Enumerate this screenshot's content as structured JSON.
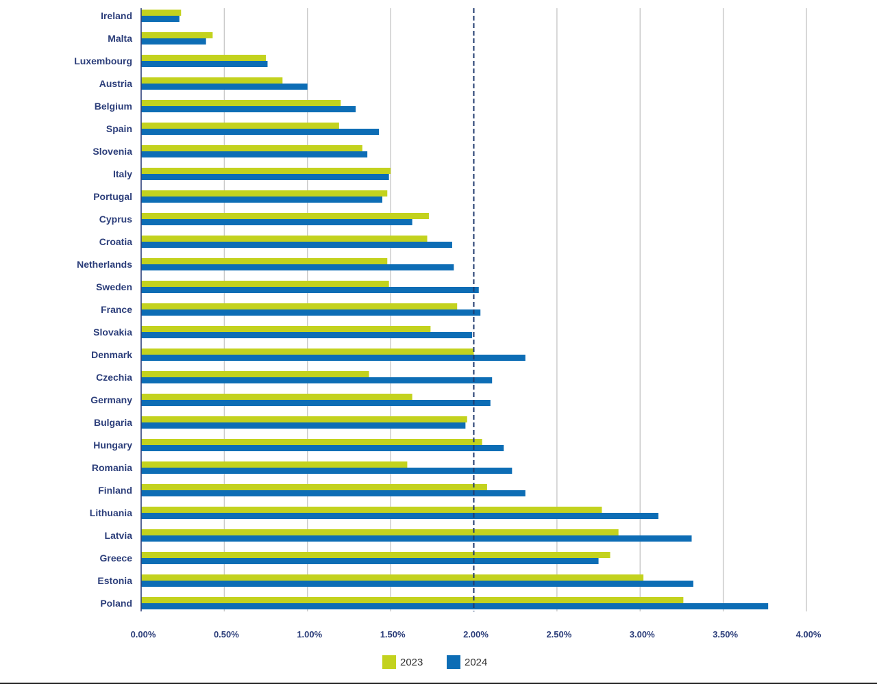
{
  "chart_data": {
    "type": "bar",
    "orientation": "horizontal",
    "title": "",
    "xlabel": "",
    "ylabel": "",
    "xlim": [
      0,
      4.0
    ],
    "grid": true,
    "legend_position": "bottom-center",
    "reference_line": {
      "value": 2.0,
      "style": "dashed"
    },
    "categories": [
      "Ireland",
      "Malta",
      "Luxembourg",
      "Austria",
      "Belgium",
      "Spain",
      "Slovenia",
      "Italy",
      "Portugal",
      "Cyprus",
      "Croatia",
      "Netherlands",
      "Sweden",
      "France",
      "Slovakia",
      "Denmark",
      "Czechia",
      "Germany",
      "Bulgaria",
      "Hungary",
      "Romania",
      "Finland",
      "Lithuania",
      "Latvia",
      "Greece",
      "Estonia",
      "Poland"
    ],
    "series": [
      {
        "name": "2023",
        "color": "#c3d21e",
        "values": [
          0.24,
          0.43,
          0.75,
          0.85,
          1.2,
          1.19,
          1.33,
          1.5,
          1.48,
          1.73,
          1.72,
          1.48,
          1.49,
          1.9,
          1.74,
          2.0,
          1.37,
          1.63,
          1.96,
          2.05,
          1.6,
          2.08,
          2.77,
          2.87,
          2.82,
          3.02,
          3.26
        ]
      },
      {
        "name": "2024",
        "color": "#0d6db5",
        "values": [
          0.23,
          0.39,
          0.76,
          1.0,
          1.29,
          1.43,
          1.36,
          1.49,
          1.45,
          1.63,
          1.87,
          1.88,
          2.03,
          2.04,
          1.99,
          2.31,
          2.11,
          2.1,
          1.95,
          2.18,
          2.23,
          2.31,
          3.11,
          3.31,
          2.75,
          3.32,
          3.77
        ]
      }
    ],
    "x_ticks": [
      0,
      0.5,
      1.0,
      1.5,
      2.0,
      2.5,
      3.0,
      3.5,
      4.0
    ],
    "x_tick_labels": [
      "0.00%",
      "0.50%",
      "1.00%",
      "1.50%",
      "2.00%",
      "2.50%",
      "3.00%",
      "3.50%",
      "4.00%"
    ],
    "legend": [
      "2023",
      "2024"
    ]
  }
}
